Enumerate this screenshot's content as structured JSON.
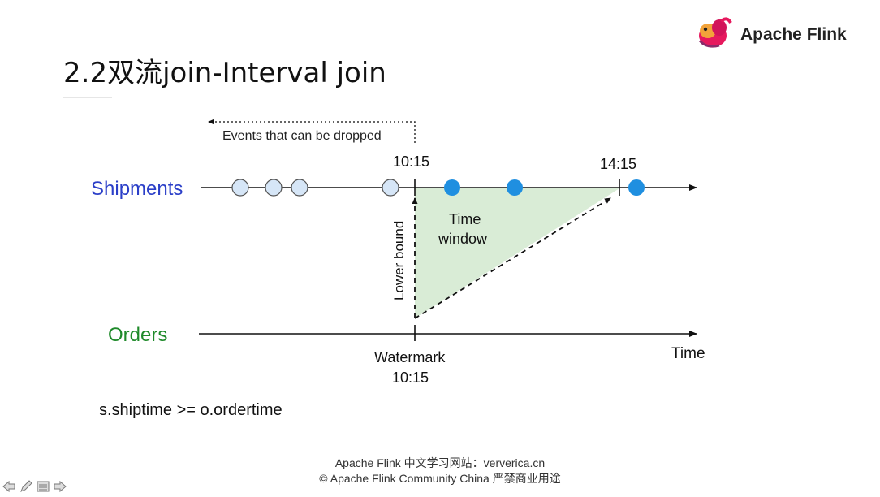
{
  "slide": {
    "title": "2.2双流join-Interval join",
    "logo_text": "Apache Flink",
    "formula": "s.shiptime >= o.ordertime",
    "footer_line1": "Apache Flink 中文学习网站：ververica.cn",
    "footer_line2": "© Apache Flink Community China  严禁商业用途"
  },
  "diagram": {
    "dropped_label": "Events that can be dropped",
    "shipments_label": "Shipments",
    "orders_label": "Orders",
    "time_label": "Time",
    "tick_top_label": "10:15",
    "tick_right_label": "14:15",
    "window_label_line1": "Time",
    "window_label_line2": "window",
    "lower_bound_label": "Lower bound",
    "watermark_label": "Watermark",
    "watermark_time": "10:15",
    "colors": {
      "shipments": "#2b3fc8",
      "orders": "#1f8a2a",
      "event_dropped": "#d6e6f7",
      "event_active": "#1f8fe0",
      "window_fill": "#d9ecd6"
    }
  },
  "nav_icons": [
    "back-arrow-icon",
    "pen-icon",
    "menu-icon",
    "forward-arrow-icon"
  ]
}
